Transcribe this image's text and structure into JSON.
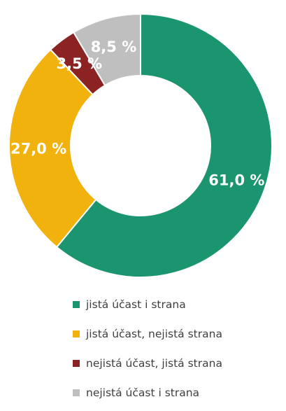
{
  "chart_data": {
    "type": "pie",
    "donut": true,
    "title": "",
    "slices": [
      {
        "name": "jistá účast i strana",
        "value": 61.0,
        "label": "61,0 %",
        "color": "#1b9470"
      },
      {
        "name": "jistá účast, nejistá strana",
        "value": 27.0,
        "label": "27,0 %",
        "color": "#f2b20d"
      },
      {
        "name": "nejistá účast, jistá strana",
        "value": 3.5,
        "label": "3,5 %",
        "color": "#8b2323"
      },
      {
        "name": "nejistá účast i strana",
        "value": 8.5,
        "label": "8,5 %",
        "color": "#bfbfbf"
      }
    ],
    "legend_position": "bottom"
  }
}
